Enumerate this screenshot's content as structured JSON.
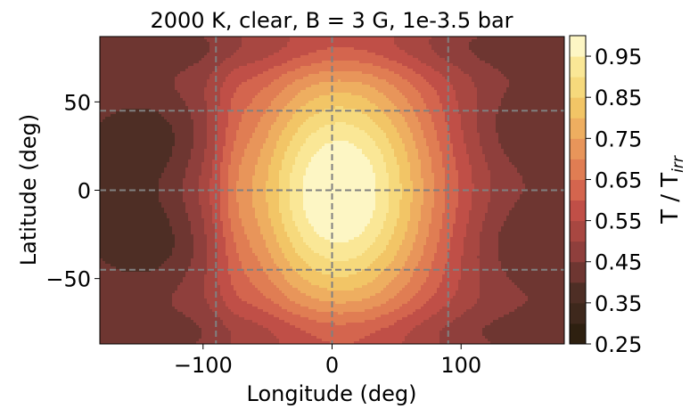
{
  "chart_data": {
    "type": "heatmap",
    "title": "2000 K, clear, B = 3 G, 1e-3.5 bar",
    "xlabel": "Longitude (deg)",
    "ylabel": "Latitude (deg)",
    "xlim": [
      -180,
      180
    ],
    "ylim": [
      -87,
      87
    ],
    "x_ticks": [
      -100,
      0,
      100
    ],
    "x_tick_labels": [
      "−100",
      "0",
      "100"
    ],
    "y_ticks": [
      -50,
      0,
      50
    ],
    "y_tick_labels": [
      "−50",
      "0",
      "50"
    ],
    "grid_lines": {
      "longitude": [
        -90,
        0,
        90
      ],
      "latitude": [
        -45,
        0,
        45
      ],
      "style": "dashed",
      "color": "#808080"
    },
    "colorbar": {
      "label_main": "T / T",
      "label_sub": "irr",
      "range": [
        0.25,
        1.0
      ],
      "levels": [
        0.25,
        0.3,
        0.35,
        0.4,
        0.45,
        0.5,
        0.55,
        0.6,
        0.65,
        0.7,
        0.75,
        0.8,
        0.85,
        0.9,
        0.95,
        1.0
      ],
      "colors": [
        "#1f1603",
        "#2e2010",
        "#3e281c",
        "#4e2e25",
        "#6e3631",
        "#8f3f3c",
        "#a84741",
        "#c04f47",
        "#d4654e",
        "#e07d53",
        "#e8955a",
        "#eeae60",
        "#f2c566",
        "#f6d97c",
        "#fae796",
        "#fdf6c4"
      ],
      "tick_values": [
        0.25,
        0.35,
        0.45,
        0.55,
        0.65,
        0.75,
        0.85,
        0.95
      ],
      "tick_labels": [
        "0.25",
        "0.35",
        "0.45",
        "0.55",
        "0.65",
        "0.75",
        "0.85",
        "0.95"
      ]
    },
    "field_description": "T/Tirr peaks ~0.95 near (lon 0, lat 0); minima ~0.35-0.40 on nightside near lon -150 and lon 150 at mid latitudes"
  }
}
